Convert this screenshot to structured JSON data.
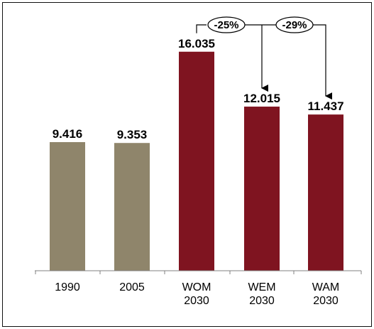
{
  "chart_data": {
    "type": "bar",
    "categories": [
      [
        "1990"
      ],
      [
        "2005"
      ],
      [
        "WOM",
        "2030"
      ],
      [
        "WEM",
        "2030"
      ],
      [
        "WAM",
        "2030"
      ]
    ],
    "values": [
      9.416,
      9.353,
      16.035,
      12.015,
      11.437
    ],
    "value_labels": [
      "9.416",
      "9.353",
      "16.035",
      "12.015",
      "11.437"
    ],
    "ylim": [
      0,
      18.0
    ],
    "grid": false,
    "legend": "none",
    "bar_colors": [
      "#8f856b",
      "#8f856b",
      "#7f1420",
      "#7f1420",
      "#7f1420"
    ],
    "annotations": [
      {
        "text": "-25%",
        "from": 2,
        "to": 3
      },
      {
        "text": "-29%",
        "from": 2,
        "to": 4
      }
    ]
  }
}
